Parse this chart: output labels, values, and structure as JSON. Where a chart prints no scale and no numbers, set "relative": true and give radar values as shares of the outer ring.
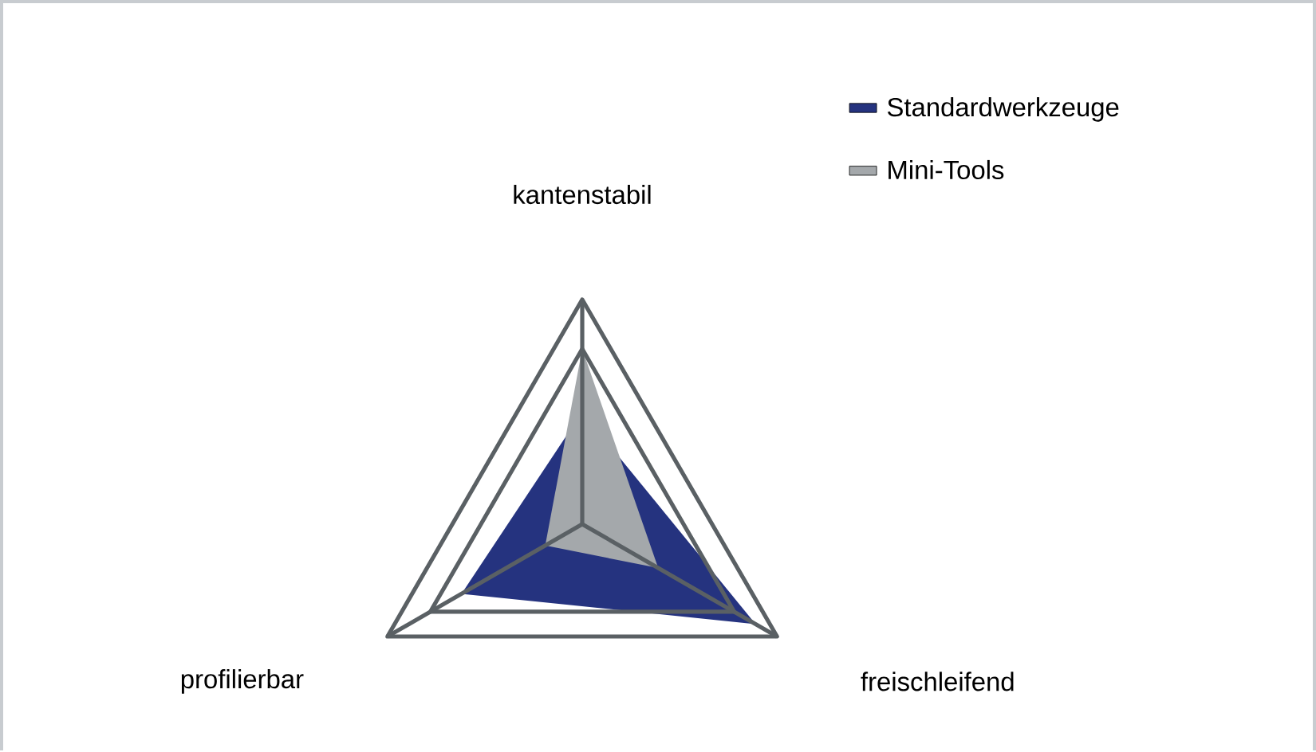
{
  "chart_data": {
    "type": "radar",
    "relative": true,
    "categories": [
      "kantenstabil",
      "freischleifend",
      "profilierbar"
    ],
    "series": [
      {
        "name": "Standardwerkzeuge",
        "color": "#25337f",
        "values": [
          0.5,
          0.89,
          0.62
        ]
      },
      {
        "name": "Mini-Tools",
        "color": "#a4a8ab",
        "values": [
          0.78,
          0.39,
          0.19
        ]
      }
    ],
    "grid": true,
    "legend": "top right"
  }
}
